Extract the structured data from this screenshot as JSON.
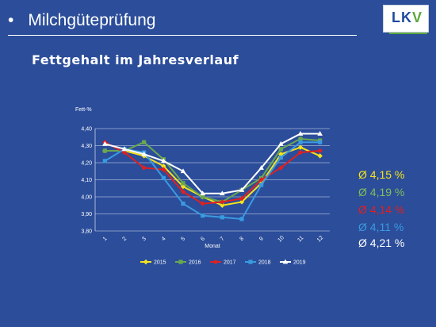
{
  "header": {
    "bullet": "•",
    "title": "Milchgüteprüfung",
    "logo": "LKV",
    "logo_parts": {
      "l": "L",
      "k": "K",
      "v": "V"
    }
  },
  "subtitle": "Fettgehalt im Jahresverlauf",
  "averages": [
    {
      "text": "Ø 4,15 %",
      "color": "#f5e31a"
    },
    {
      "text": "Ø 4,19 %",
      "color": "#7fbf5a"
    },
    {
      "text": "Ø 4,14 %",
      "color": "#e02020"
    },
    {
      "text": "Ø 4,11 %",
      "color": "#3a9ae0"
    },
    {
      "text": "Ø 4,21 %",
      "color": "#ffffff"
    }
  ],
  "chart_data": {
    "type": "line",
    "title": "",
    "xlabel": "Monat",
    "ylabel": "Fett-%",
    "ylim": [
      3.8,
      4.4
    ],
    "yticks": [
      "3,80",
      "3,90",
      "4,00",
      "4,10",
      "4,20",
      "4,30",
      "4,40"
    ],
    "ytick_values": [
      3.8,
      3.9,
      4.0,
      4.1,
      4.2,
      4.3,
      4.4
    ],
    "categories": [
      "1",
      "2",
      "3",
      "4",
      "5",
      "6",
      "7",
      "8",
      "9",
      "10",
      "11",
      "12"
    ],
    "grid": true,
    "legend_position": "bottom",
    "series": [
      {
        "name": "2015",
        "color": "#f5e31a",
        "marker": "diamond",
        "values": [
          4.27,
          4.27,
          4.24,
          4.18,
          4.06,
          4.0,
          3.95,
          3.97,
          4.08,
          4.25,
          4.29,
          4.24
        ]
      },
      {
        "name": "2016",
        "color": "#6aa84f",
        "marker": "square",
        "values": [
          4.27,
          4.27,
          4.32,
          4.22,
          4.08,
          4.0,
          3.97,
          4.04,
          4.11,
          4.28,
          4.34,
          4.33
        ]
      },
      {
        "name": "2017",
        "color": "#e02020",
        "marker": "diamond",
        "values": [
          4.32,
          4.26,
          4.17,
          4.16,
          4.03,
          3.96,
          3.97,
          3.99,
          4.1,
          4.17,
          4.26,
          4.27
        ]
      },
      {
        "name": "2018",
        "color": "#3a9ae0",
        "marker": "square",
        "values": [
          4.21,
          4.28,
          4.26,
          4.11,
          3.96,
          3.89,
          3.88,
          3.87,
          4.07,
          4.23,
          4.32,
          4.32
        ]
      },
      {
        "name": "2019",
        "color": "#ffffff",
        "marker": "triangle",
        "values": [
          4.31,
          4.28,
          4.25,
          4.21,
          4.15,
          4.02,
          4.02,
          4.04,
          4.17,
          4.31,
          4.37,
          4.37
        ]
      }
    ]
  }
}
